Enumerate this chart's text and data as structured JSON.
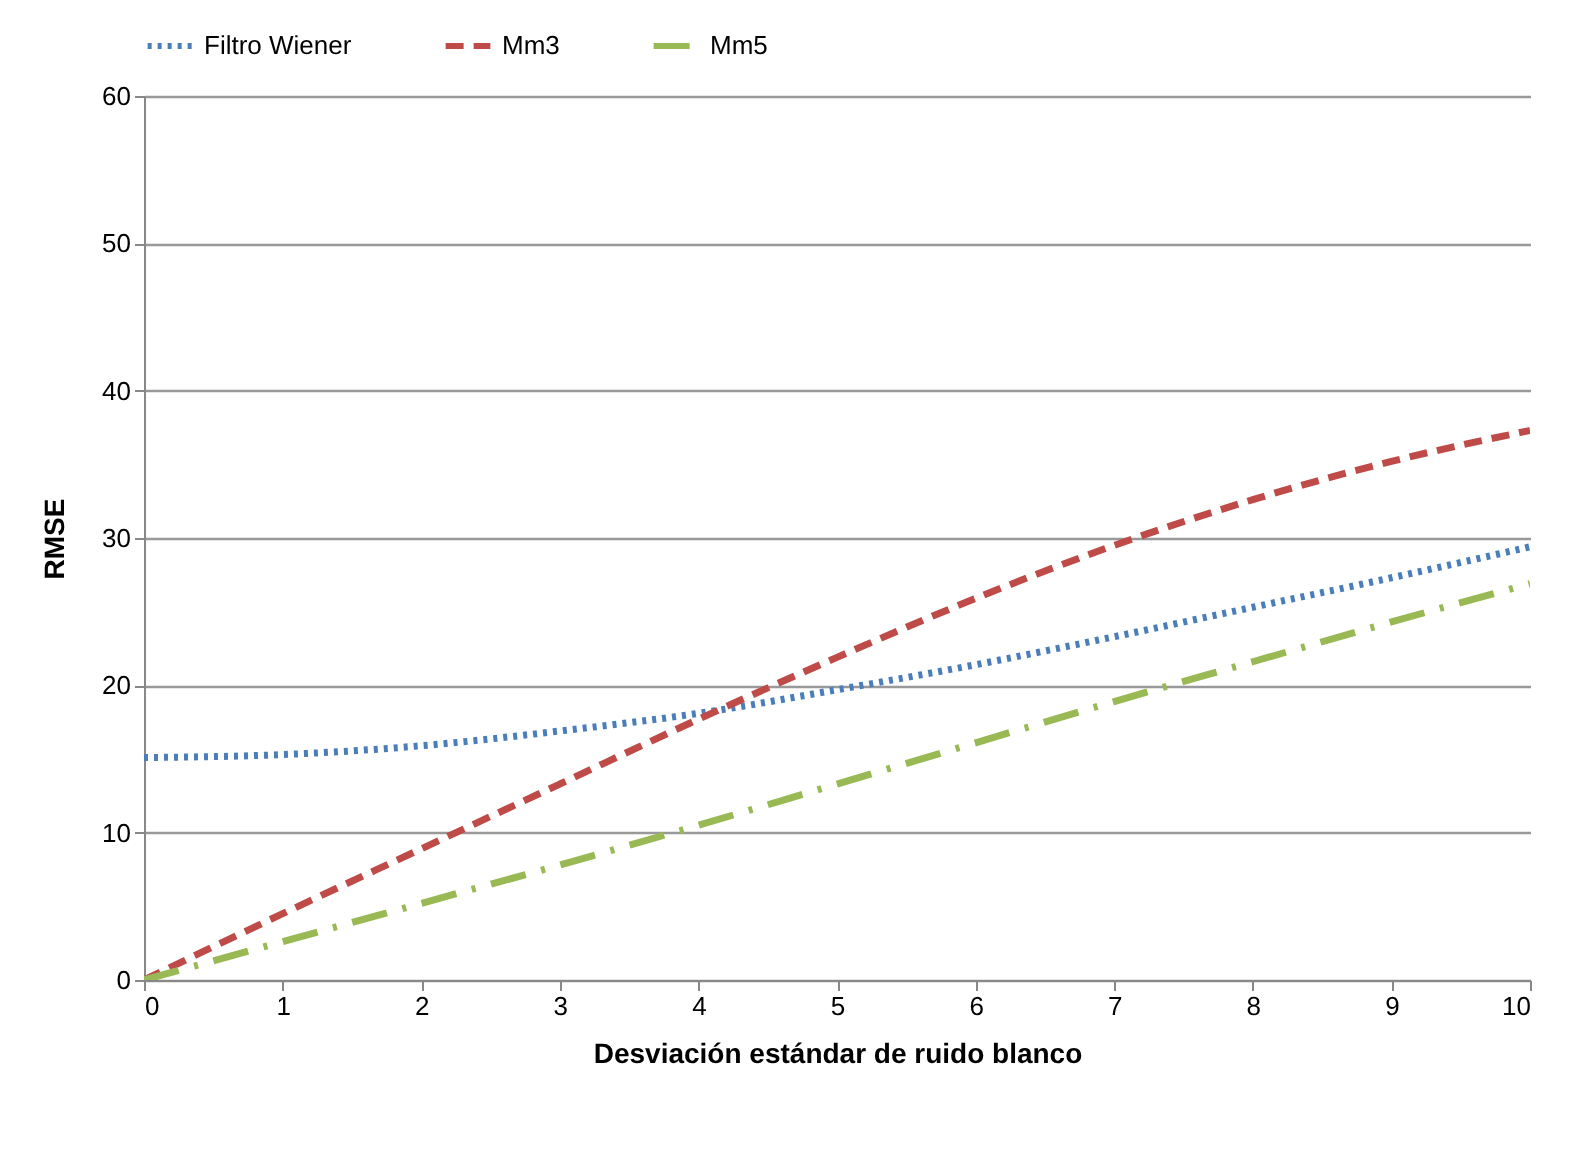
{
  "chart_data": {
    "type": "line",
    "xlabel": "Desviación estándar de ruido blanco",
    "ylabel": "RMSE",
    "x": [
      0,
      1,
      2,
      3,
      4,
      5,
      6,
      7,
      8,
      9,
      10
    ],
    "series": [
      {
        "name": "Filtro Wiener",
        "color": "#4a7ebb",
        "line_style": "dotted",
        "values": [
          15.1,
          15.3,
          15.9,
          16.9,
          18.1,
          19.7,
          21.4,
          23.3,
          25.3,
          27.3,
          29.4
        ]
      },
      {
        "name": "Mm3",
        "color": "#be4b48",
        "line_style": "dashed",
        "values": [
          0,
          4.5,
          8.9,
          13.3,
          17.7,
          21.9,
          25.9,
          29.5,
          32.6,
          35.2,
          37.3
        ]
      },
      {
        "name": "Mm5",
        "color": "#98b954",
        "line_style": "dashed",
        "values": [
          0,
          2.6,
          5.2,
          7.8,
          10.5,
          13.3,
          16.1,
          18.9,
          21.6,
          24.3,
          26.9
        ]
      }
    ],
    "xlim": [
      0,
      10
    ],
    "xticks": [
      0,
      1,
      2,
      3,
      4,
      5,
      6,
      7,
      8,
      9,
      10
    ],
    "ylim": [
      0,
      60
    ],
    "yticks": [
      0,
      10,
      20,
      30,
      40,
      50,
      60
    ],
    "grid": "y",
    "legend": "top",
    "marker": "none"
  }
}
